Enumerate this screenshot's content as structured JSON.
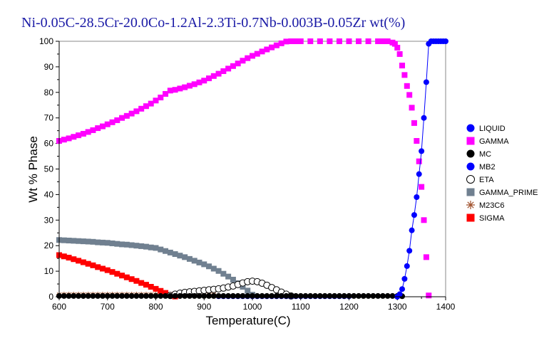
{
  "chart_data": {
    "type": "scatter",
    "title": "Ni-0.05C-28.5Cr-20.0Co-1.2Al-2.3Ti-0.7Nb-0.003B-0.05Zr wt(%)",
    "xlabel": "Temperature(C)",
    "ylabel": "Wt % Phase",
    "xlim": [
      600,
      1400
    ],
    "ylim": [
      0,
      100
    ],
    "xticks": [
      600,
      700,
      800,
      900,
      1000,
      1100,
      1200,
      1300,
      1400
    ],
    "yticks": [
      0,
      10,
      20,
      30,
      40,
      50,
      60,
      70,
      80,
      90,
      100
    ],
    "legend_position": "right",
    "grid": false,
    "series": [
      {
        "name": "LIQUID",
        "color": "#0000ff",
        "marker": "circle",
        "line": true,
        "x": [
          1300,
          1305,
          1310,
          1315,
          1320,
          1325,
          1330,
          1335,
          1340,
          1345,
          1350,
          1355,
          1360,
          1365,
          1370,
          1375,
          1380,
          1385,
          1390,
          1395,
          1400
        ],
        "y": [
          0,
          1,
          3,
          7,
          12,
          18,
          26,
          32,
          39,
          48,
          57,
          70,
          84,
          99,
          100,
          100,
          100,
          100,
          100,
          100,
          100
        ]
      },
      {
        "name": "GAMMA",
        "color": "#ff00ff",
        "marker": "square",
        "line": false,
        "x": [
          600,
          610,
          620,
          630,
          640,
          650,
          660,
          670,
          680,
          690,
          700,
          710,
          720,
          730,
          740,
          750,
          760,
          770,
          780,
          790,
          800,
          810,
          820,
          830,
          840,
          850,
          860,
          870,
          880,
          890,
          900,
          910,
          920,
          930,
          940,
          950,
          960,
          970,
          980,
          990,
          1000,
          1010,
          1020,
          1030,
          1040,
          1050,
          1060,
          1070,
          1080,
          1090,
          1100,
          1120,
          1140,
          1160,
          1180,
          1200,
          1220,
          1240,
          1260,
          1270,
          1280,
          1290,
          1295,
          1300,
          1305,
          1310,
          1315,
          1320,
          1325,
          1330,
          1335,
          1340,
          1345,
          1350,
          1355,
          1360,
          1365
        ],
        "y": [
          61,
          61.5,
          62,
          62.6,
          63.2,
          63.8,
          64.5,
          65.2,
          66,
          66.7,
          67.5,
          68.3,
          69.1,
          70,
          70.8,
          71.7,
          72.6,
          73.6,
          74.6,
          75.6,
          76.8,
          78,
          79.4,
          80.7,
          81,
          81.5,
          82,
          82.6,
          83.2,
          83.9,
          84.6,
          85.5,
          86.4,
          87.3,
          88.3,
          89.3,
          90.3,
          91.3,
          92.4,
          93.4,
          94.3,
          95.1,
          96,
          96.8,
          97.6,
          98.4,
          99.2,
          99.9,
          100,
          100,
          100,
          100,
          100,
          100,
          100,
          100,
          100,
          100,
          100,
          100,
          100,
          99.5,
          99,
          97.5,
          95,
          90.5,
          86.8,
          82.5,
          79,
          74,
          68,
          61,
          53,
          43,
          30,
          15.5,
          0.5
        ]
      },
      {
        "name": "MC",
        "color": "#000000",
        "marker": "circle",
        "line": false,
        "x": [
          600,
          610,
          620,
          630,
          640,
          650,
          660,
          670,
          680,
          690,
          700,
          710,
          720,
          730,
          740,
          750,
          760,
          770,
          780,
          790,
          800,
          810,
          820,
          830,
          840,
          850,
          860,
          870,
          880,
          890,
          900,
          910,
          920,
          930,
          940,
          950,
          960,
          970,
          980,
          990,
          1000,
          1010,
          1020,
          1030,
          1040,
          1050,
          1060,
          1070,
          1080,
          1090,
          1100,
          1110,
          1120,
          1130,
          1140,
          1150,
          1160,
          1170,
          1180,
          1190,
          1200,
          1210,
          1220,
          1230,
          1240,
          1250,
          1260,
          1270,
          1280,
          1290,
          1300,
          1310
        ],
        "y": [
          0.3,
          0.3,
          0.3,
          0.3,
          0.3,
          0.3,
          0.3,
          0.3,
          0.3,
          0.3,
          0.3,
          0.3,
          0.3,
          0.3,
          0.3,
          0.3,
          0.3,
          0.3,
          0.3,
          0.3,
          0.3,
          0.3,
          0.3,
          0.3,
          0.3,
          0.3,
          0.3,
          0.3,
          0.3,
          0.3,
          0.3,
          0.3,
          0.3,
          0.3,
          0.3,
          0.3,
          0.3,
          0.3,
          0.3,
          0.3,
          0.3,
          0.3,
          0.3,
          0.3,
          0.3,
          0.3,
          0.3,
          0.3,
          0.3,
          0.3,
          0.3,
          0.3,
          0.3,
          0.3,
          0.3,
          0.3,
          0.3,
          0.3,
          0.3,
          0.3,
          0.3,
          0.3,
          0.3,
          0.3,
          0.3,
          0.3,
          0.3,
          0.3,
          0.3,
          0.3,
          0.3,
          0.2
        ]
      },
      {
        "name": "MB2",
        "color": "#0000ff",
        "marker": "circle",
        "line": false,
        "x": [
          930,
          940,
          950,
          960,
          970,
          980,
          990,
          1000,
          1010,
          1020,
          1030,
          1040,
          1050,
          1060,
          1070,
          1080,
          1090,
          1100,
          1110,
          1120,
          1130,
          1140,
          1150,
          1160,
          1170,
          1180,
          1190,
          1200
        ],
        "y": [
          0.2,
          0.2,
          0.2,
          0.2,
          0.2,
          0.2,
          0.2,
          0.2,
          0.2,
          0.2,
          0.2,
          0.2,
          0.2,
          0.2,
          0.2,
          0.2,
          0.2,
          0.2,
          0.2,
          0.2,
          0.2,
          0.2,
          0.2,
          0.2,
          0.2,
          0.2,
          0.2,
          0.2
        ]
      },
      {
        "name": "ETA",
        "color": "#000000",
        "marker": "open-circle",
        "line": false,
        "x": [
          830,
          840,
          850,
          860,
          870,
          880,
          890,
          900,
          910,
          920,
          930,
          940,
          950,
          960,
          970,
          980,
          990,
          1000,
          1010,
          1020,
          1030,
          1040,
          1050,
          1060,
          1070,
          1080
        ],
        "y": [
          0.5,
          1,
          1.4,
          1.7,
          1.9,
          2.1,
          2.3,
          2.5,
          2.7,
          2.9,
          3.1,
          3.4,
          3.8,
          4.2,
          4.8,
          5.4,
          5.9,
          6.1,
          5.9,
          5.3,
          4.5,
          3.6,
          2.7,
          1.8,
          1.0,
          0.3
        ]
      },
      {
        "name": "GAMMA_PRIME",
        "color": "#708090",
        "marker": "square",
        "line": false,
        "x": [
          600,
          610,
          620,
          630,
          640,
          650,
          660,
          670,
          680,
          690,
          700,
          710,
          720,
          730,
          740,
          750,
          760,
          770,
          780,
          790,
          800,
          810,
          820,
          830,
          840,
          850,
          860,
          870,
          880,
          890,
          900,
          910,
          920,
          930,
          940,
          950,
          960,
          970,
          980,
          990,
          1000
        ],
        "y": [
          22.2,
          22.1,
          22,
          21.9,
          21.8,
          21.7,
          21.6,
          21.5,
          21.3,
          21.2,
          21.1,
          20.9,
          20.7,
          20.5,
          20.4,
          20.2,
          20,
          19.8,
          19.6,
          19.3,
          19.1,
          18.5,
          17.9,
          17.3,
          16.7,
          16.1,
          15.5,
          14.8,
          14.1,
          13.4,
          12.7,
          11.9,
          11.0,
          10.1,
          9.0,
          7.9,
          6.7,
          5.3,
          3.9,
          2.4,
          0.8
        ]
      },
      {
        "name": "M23C6",
        "color": "#a0522d",
        "marker": "star",
        "line": false,
        "x": [
          600,
          610,
          620,
          630,
          640,
          650,
          660,
          670,
          680,
          690,
          700,
          710,
          720,
          730,
          740,
          750,
          760,
          770,
          780,
          790,
          800,
          810,
          820,
          830,
          840,
          850,
          860,
          870,
          880,
          890,
          900,
          910,
          920
        ],
        "y": [
          0.8,
          0.8,
          0.8,
          0.8,
          0.8,
          0.8,
          0.8,
          0.8,
          0.8,
          0.8,
          0.8,
          0.8,
          0.8,
          0.8,
          0.8,
          0.8,
          0.8,
          0.8,
          0.8,
          0.8,
          0.8,
          0.8,
          0.8,
          0.8,
          0.8,
          0.8,
          0.8,
          0.8,
          0.8,
          0.8,
          0.8,
          0.8,
          0.8
        ]
      },
      {
        "name": "SIGMA",
        "color": "#ff0000",
        "marker": "square",
        "line": false,
        "x": [
          600,
          610,
          620,
          630,
          640,
          650,
          660,
          670,
          680,
          690,
          700,
          710,
          720,
          730,
          740,
          750,
          760,
          770,
          780,
          790,
          800,
          810,
          820,
          830,
          840
        ],
        "y": [
          16.3,
          15.8,
          15.3,
          14.7,
          14.1,
          13.5,
          12.9,
          12.3,
          11.6,
          11.0,
          10.4,
          9.7,
          9.0,
          8.3,
          7.6,
          6.9,
          6.2,
          5.4,
          4.7,
          3.9,
          3.1,
          2.3,
          1.5,
          0.7,
          0.1
        ]
      }
    ]
  }
}
